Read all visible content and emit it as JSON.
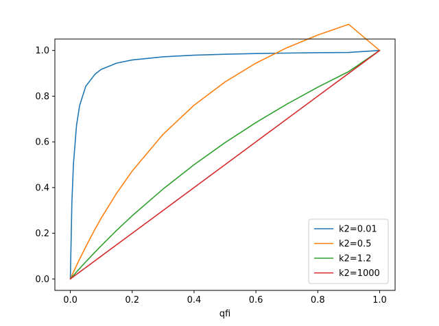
{
  "chart_data": {
    "type": "line",
    "title": "",
    "xlabel": "qfi",
    "ylabel": "",
    "xlim": [
      -0.05,
      1.05
    ],
    "ylim": [
      -0.05,
      1.05
    ],
    "x_ticks": [
      0.0,
      0.2,
      0.4,
      0.6,
      0.8,
      1.0
    ],
    "x_tick_labels": [
      "0.0",
      "0.2",
      "0.4",
      "0.6",
      "0.8",
      "1.0"
    ],
    "y_ticks": [
      0.0,
      0.2,
      0.4,
      0.6,
      0.8,
      1.0
    ],
    "y_tick_labels": [
      "0.0",
      "0.2",
      "0.4",
      "0.6",
      "0.8",
      "1.0"
    ],
    "grid": false,
    "legend_position": "lower-right",
    "x": [
      0.0,
      0.005,
      0.01,
      0.02,
      0.03,
      0.05,
      0.08,
      0.1,
      0.15,
      0.2,
      0.3,
      0.4,
      0.5,
      0.6,
      0.7,
      0.8,
      0.9,
      1.0
    ],
    "series": [
      {
        "name": "k2=0.01",
        "color": "#1f77b4",
        "values": [
          0.0,
          0.335,
          0.5025,
          0.6723,
          0.7589,
          0.8435,
          0.8966,
          0.9175,
          0.9447,
          0.9584,
          0.9723,
          0.9793,
          0.9836,
          0.9865,
          0.9886,
          0.9902,
          0.9914,
          1.0
        ]
      },
      {
        "name": "k2=0.5",
        "color": "#ff7f0e",
        "values": [
          0.0,
          0.015,
          0.0298,
          0.0588,
          0.087,
          0.1412,
          0.2188,
          0.2667,
          0.3761,
          0.4722,
          0.6333,
          0.7604,
          0.8621,
          0.9444,
          1.0119,
          1.0677,
          1.1143,
          1.0
        ]
      },
      {
        "name": "k2=1.2",
        "color": "#2ca02c",
        "values": [
          0.0,
          0.0077,
          0.0154,
          0.0306,
          0.0456,
          0.0751,
          0.1181,
          0.1459,
          0.2132,
          0.2766,
          0.3938,
          0.5,
          0.5965,
          0.6846,
          0.7652,
          0.8393,
          0.9076,
          1.0
        ]
      },
      {
        "name": "k2=1000",
        "color": "#d62728",
        "values": [
          0.0,
          0.005,
          0.01,
          0.02,
          0.03,
          0.05,
          0.08,
          0.1,
          0.15,
          0.2,
          0.3,
          0.4,
          0.5,
          0.6,
          0.7,
          0.8,
          0.9,
          1.0
        ]
      }
    ]
  }
}
